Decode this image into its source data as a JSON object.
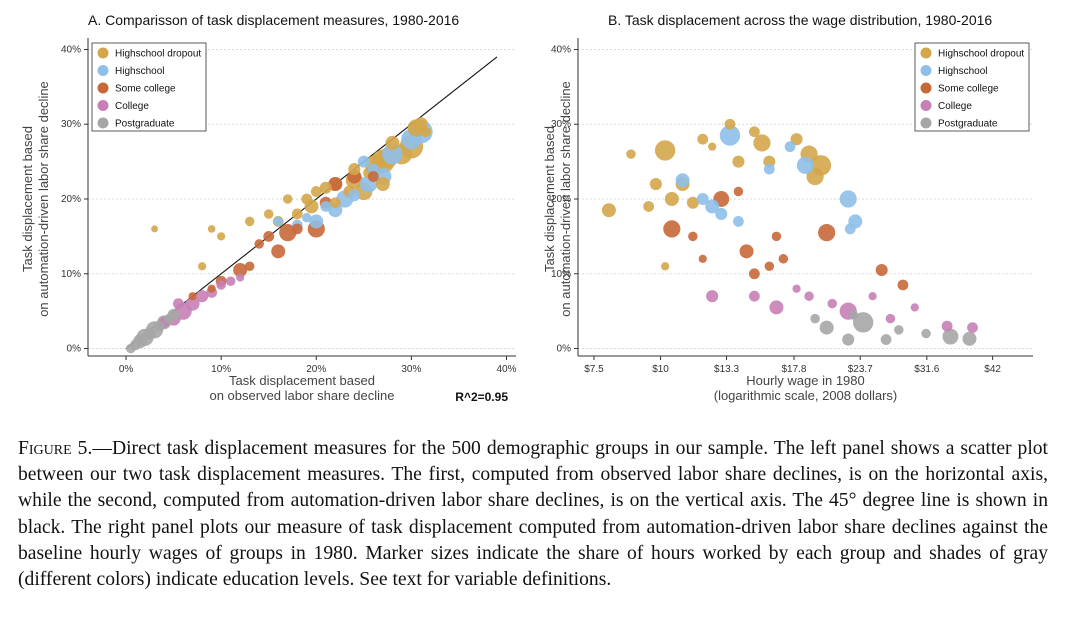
{
  "colors": {
    "Highschool dropout": "#d4a64a",
    "Highschool": "#8fbfe8",
    "Some college": "#c8683a",
    "College": "#c77fb5",
    "Postgraduate": "#a6a6a6"
  },
  "chart_data": [
    {
      "type": "scatter",
      "title": "A. Comparisson of task displacement measures, 1980-2016",
      "xlabel": "Task displacement based\non observed labor share decline",
      "ylabel": "Task displacement based\non automation-driven labor share decline",
      "xlim": [
        -0.04,
        0.41
      ],
      "ylim": [
        -0.01,
        0.41
      ],
      "xticks": [
        0,
        0.1,
        0.2,
        0.3,
        0.4
      ],
      "xtick_labels": [
        "0%",
        "10%",
        "20%",
        "30%",
        "40%"
      ],
      "yticks": [
        0,
        0.1,
        0.2,
        0.3,
        0.4
      ],
      "ytick_labels": [
        "0%",
        "10%",
        "20%",
        "30%",
        "40%"
      ],
      "grid": true,
      "reference_line": [
        [
          0,
          0
        ],
        [
          0.39,
          0.39
        ]
      ],
      "annotation": "R^2=0.95",
      "legend_placement": "top-left",
      "legend": [
        "Highschool dropout",
        "Highschool",
        "Some college",
        "College",
        "Postgraduate"
      ],
      "series": [
        {
          "name": "Highschool dropout",
          "points": [
            [
              0.27,
              0.25,
              3
            ],
            [
              0.275,
              0.255,
              2.5
            ],
            [
              0.3,
              0.27,
              3
            ],
            [
              0.29,
              0.26,
              2.5
            ],
            [
              0.305,
              0.295,
              2
            ],
            [
              0.262,
              0.245,
              2.5
            ],
            [
              0.24,
              0.225,
              2
            ],
            [
              0.25,
              0.21,
              2
            ],
            [
              0.27,
              0.22,
              1.5
            ],
            [
              0.22,
              0.22,
              1.5
            ],
            [
              0.195,
              0.19,
              1.5
            ],
            [
              0.19,
              0.2,
              1
            ],
            [
              0.18,
              0.18,
              1
            ],
            [
              0.16,
              0.17,
              1
            ],
            [
              0.17,
              0.2,
              0.8
            ],
            [
              0.15,
              0.18,
              0.8
            ],
            [
              0.13,
              0.17,
              0.8
            ],
            [
              0.22,
              0.195,
              1
            ],
            [
              0.235,
              0.21,
              1.2
            ],
            [
              0.24,
              0.24,
              1.2
            ],
            [
              0.2,
              0.21,
              1
            ],
            [
              0.255,
              0.235,
              1
            ],
            [
              0.1,
              0.15,
              0.6
            ],
            [
              0.09,
              0.16,
              0.5
            ],
            [
              0.08,
              0.11,
              0.6
            ],
            [
              0.03,
              0.16,
              0.4
            ],
            [
              0.28,
              0.275,
              1.5
            ],
            [
              0.31,
              0.3,
              1.5
            ],
            [
              0.315,
              0.29,
              1
            ],
            [
              0.21,
              0.215,
              1.2
            ]
          ]
        },
        {
          "name": "Highschool",
          "points": [
            [
              0.31,
              0.29,
              3
            ],
            [
              0.3,
              0.28,
              2.5
            ],
            [
              0.28,
              0.26,
              2.5
            ],
            [
              0.27,
              0.23,
              2
            ],
            [
              0.255,
              0.22,
              2
            ],
            [
              0.23,
              0.2,
              2
            ],
            [
              0.22,
              0.185,
              1.5
            ],
            [
              0.2,
              0.17,
              1.5
            ],
            [
              0.18,
              0.165,
              1
            ],
            [
              0.21,
              0.19,
              1
            ],
            [
              0.25,
              0.25,
              1.2
            ],
            [
              0.26,
              0.24,
              1
            ],
            [
              0.19,
              0.175,
              0.8
            ],
            [
              0.16,
              0.17,
              0.8
            ],
            [
              0.24,
              0.205,
              1.2
            ]
          ]
        },
        {
          "name": "Some college",
          "points": [
            [
              0.2,
              0.16,
              2
            ],
            [
              0.17,
              0.155,
              2
            ],
            [
              0.16,
              0.13,
              1.5
            ],
            [
              0.12,
              0.105,
              1.5
            ],
            [
              0.1,
              0.09,
              1
            ],
            [
              0.22,
              0.22,
              1.5
            ],
            [
              0.24,
              0.23,
              1.5
            ],
            [
              0.21,
              0.195,
              1.2
            ],
            [
              0.18,
              0.16,
              1
            ],
            [
              0.13,
              0.11,
              0.8
            ],
            [
              0.26,
              0.23,
              1
            ],
            [
              0.14,
              0.14,
              0.8
            ],
            [
              0.09,
              0.08,
              0.6
            ],
            [
              0.07,
              0.07,
              0.6
            ],
            [
              0.15,
              0.15,
              1
            ]
          ]
        },
        {
          "name": "College",
          "points": [
            [
              0.06,
              0.05,
              2
            ],
            [
              0.07,
              0.06,
              1.5
            ],
            [
              0.05,
              0.04,
              1.5
            ],
            [
              0.08,
              0.07,
              1.2
            ],
            [
              0.09,
              0.075,
              1
            ],
            [
              0.04,
              0.035,
              1
            ],
            [
              0.1,
              0.085,
              0.8
            ],
            [
              0.11,
              0.09,
              0.8
            ],
            [
              0.055,
              0.06,
              1
            ],
            [
              0.12,
              0.095,
              0.6
            ]
          ]
        },
        {
          "name": "Postgraduate",
          "points": [
            [
              0.02,
              0.015,
              2
            ],
            [
              0.03,
              0.025,
              2
            ],
            [
              0.04,
              0.035,
              1.5
            ],
            [
              0.015,
              0.01,
              1.5
            ],
            [
              0.05,
              0.045,
              1.2
            ],
            [
              0.01,
              0.005,
              1
            ],
            [
              0.025,
              0.02,
              1.2
            ],
            [
              0.035,
              0.03,
              1
            ],
            [
              0.005,
              0.0,
              0.8
            ],
            [
              0.045,
              0.04,
              0.8
            ]
          ]
        }
      ]
    },
    {
      "type": "scatter",
      "title": "B. Task displacement across the wage distribution, 1980-2016",
      "xlabel": "Hourly wage in 1980\n(logarithmic scale, 2008 dollars)",
      "ylabel": "Task displacement based\non automation-driven labor share decline",
      "xscale": "log",
      "xlim": [
        7.0,
        50.0
      ],
      "ylim": [
        -0.01,
        0.41
      ],
      "xticks": [
        7.5,
        10,
        13.3,
        17.8,
        23.7,
        31.6,
        42
      ],
      "xtick_labels": [
        "$7.5",
        "$10",
        "$13.3",
        "$17.8",
        "$23.7",
        "$31.6",
        "$42"
      ],
      "yticks": [
        0,
        0.1,
        0.2,
        0.3,
        0.4
      ],
      "ytick_labels": [
        "0%",
        "10%",
        "20%",
        "30%",
        "40%"
      ],
      "grid": true,
      "legend_placement": "top-right",
      "legend": [
        "Highschool dropout",
        "Highschool",
        "Some college",
        "College",
        "Postgraduate"
      ],
      "series": [
        {
          "name": "Highschool dropout",
          "points": [
            [
              10.2,
              0.265,
              2.5
            ],
            [
              8.0,
              0.185,
              1.5
            ],
            [
              10.5,
              0.2,
              1.5
            ],
            [
              11.0,
              0.22,
              1.5
            ],
            [
              11.5,
              0.195,
              1.2
            ],
            [
              15.5,
              0.275,
              2
            ],
            [
              19.0,
              0.26,
              2
            ],
            [
              20.0,
              0.245,
              2.5
            ],
            [
              19.5,
              0.23,
              2
            ],
            [
              14.0,
              0.25,
              1.2
            ],
            [
              16.0,
              0.25,
              1.2
            ],
            [
              12.0,
              0.28,
              1
            ],
            [
              9.8,
              0.22,
              1.2
            ],
            [
              9.5,
              0.19,
              1
            ],
            [
              18.0,
              0.28,
              1.2
            ],
            [
              13.5,
              0.3,
              1
            ],
            [
              15.0,
              0.29,
              1
            ],
            [
              8.8,
              0.26,
              0.8
            ],
            [
              12.5,
              0.27,
              0.6
            ],
            [
              10.2,
              0.11,
              0.6
            ]
          ]
        },
        {
          "name": "Highschool",
          "points": [
            [
              13.5,
              0.285,
              2.5
            ],
            [
              18.7,
              0.245,
              2
            ],
            [
              22.5,
              0.2,
              2
            ],
            [
              23.2,
              0.17,
              1.5
            ],
            [
              12.5,
              0.19,
              1.5
            ],
            [
              13.0,
              0.18,
              1.2
            ],
            [
              12.0,
              0.2,
              1.2
            ],
            [
              11.0,
              0.225,
              1.5
            ],
            [
              14.0,
              0.17,
              1
            ],
            [
              16.0,
              0.24,
              1
            ],
            [
              22.7,
              0.16,
              1
            ],
            [
              17.5,
              0.27,
              1
            ]
          ]
        },
        {
          "name": "Some college",
          "points": [
            [
              10.5,
              0.16,
              2
            ],
            [
              13.0,
              0.2,
              1.8
            ],
            [
              14.5,
              0.13,
              1.5
            ],
            [
              20.5,
              0.155,
              2
            ],
            [
              26.0,
              0.105,
              1.2
            ],
            [
              28.5,
              0.085,
              1
            ],
            [
              15.0,
              0.1,
              1
            ],
            [
              16.0,
              0.11,
              0.8
            ],
            [
              17.0,
              0.12,
              0.8
            ],
            [
              11.5,
              0.15,
              0.8
            ],
            [
              14.0,
              0.21,
              0.8
            ],
            [
              16.5,
              0.15,
              0.8
            ],
            [
              12.0,
              0.12,
              0.6
            ]
          ]
        },
        {
          "name": "College",
          "points": [
            [
              22.5,
              0.05,
              2
            ],
            [
              16.5,
              0.055,
              1.5
            ],
            [
              12.5,
              0.07,
              1.2
            ],
            [
              15.0,
              0.07,
              1
            ],
            [
              34.5,
              0.03,
              1
            ],
            [
              38.5,
              0.028,
              1
            ],
            [
              19.0,
              0.07,
              0.8
            ],
            [
              21.0,
              0.06,
              0.8
            ],
            [
              27.0,
              0.04,
              0.8
            ],
            [
              25.0,
              0.07,
              0.6
            ],
            [
              18.0,
              0.08,
              0.6
            ],
            [
              30.0,
              0.055,
              0.6
            ]
          ]
        },
        {
          "name": "Postgraduate",
          "points": [
            [
              24.0,
              0.035,
              2.5
            ],
            [
              35.0,
              0.016,
              1.8
            ],
            [
              38.0,
              0.013,
              1.5
            ],
            [
              20.5,
              0.028,
              1.5
            ],
            [
              22.5,
              0.012,
              1.2
            ],
            [
              26.5,
              0.012,
              1
            ],
            [
              28.0,
              0.025,
              0.8
            ],
            [
              19.5,
              0.04,
              0.8
            ],
            [
              31.5,
              0.02,
              0.8
            ],
            [
              23.0,
              0.045,
              0.8
            ]
          ]
        }
      ]
    }
  ],
  "caption": {
    "figure_label": "Figure 5.",
    "text": "—Direct task displacement measures for the 500 demographic groups in our sample. The left panel shows a scatter plot between our two task displacement measures. The first, computed from observed labor share declines, is on the horizontal axis, while the second, computed from automation-driven labor share declines, is on the vertical axis. The 45° degree line is shown in black. The right panel plots our measure of task displacement computed from automation-driven labor share declines against the baseline hourly wages of groups in 1980. Marker sizes indicate the share of hours worked by each group and shades of gray (different colors) indicate education levels. See text for variable definitions."
  }
}
